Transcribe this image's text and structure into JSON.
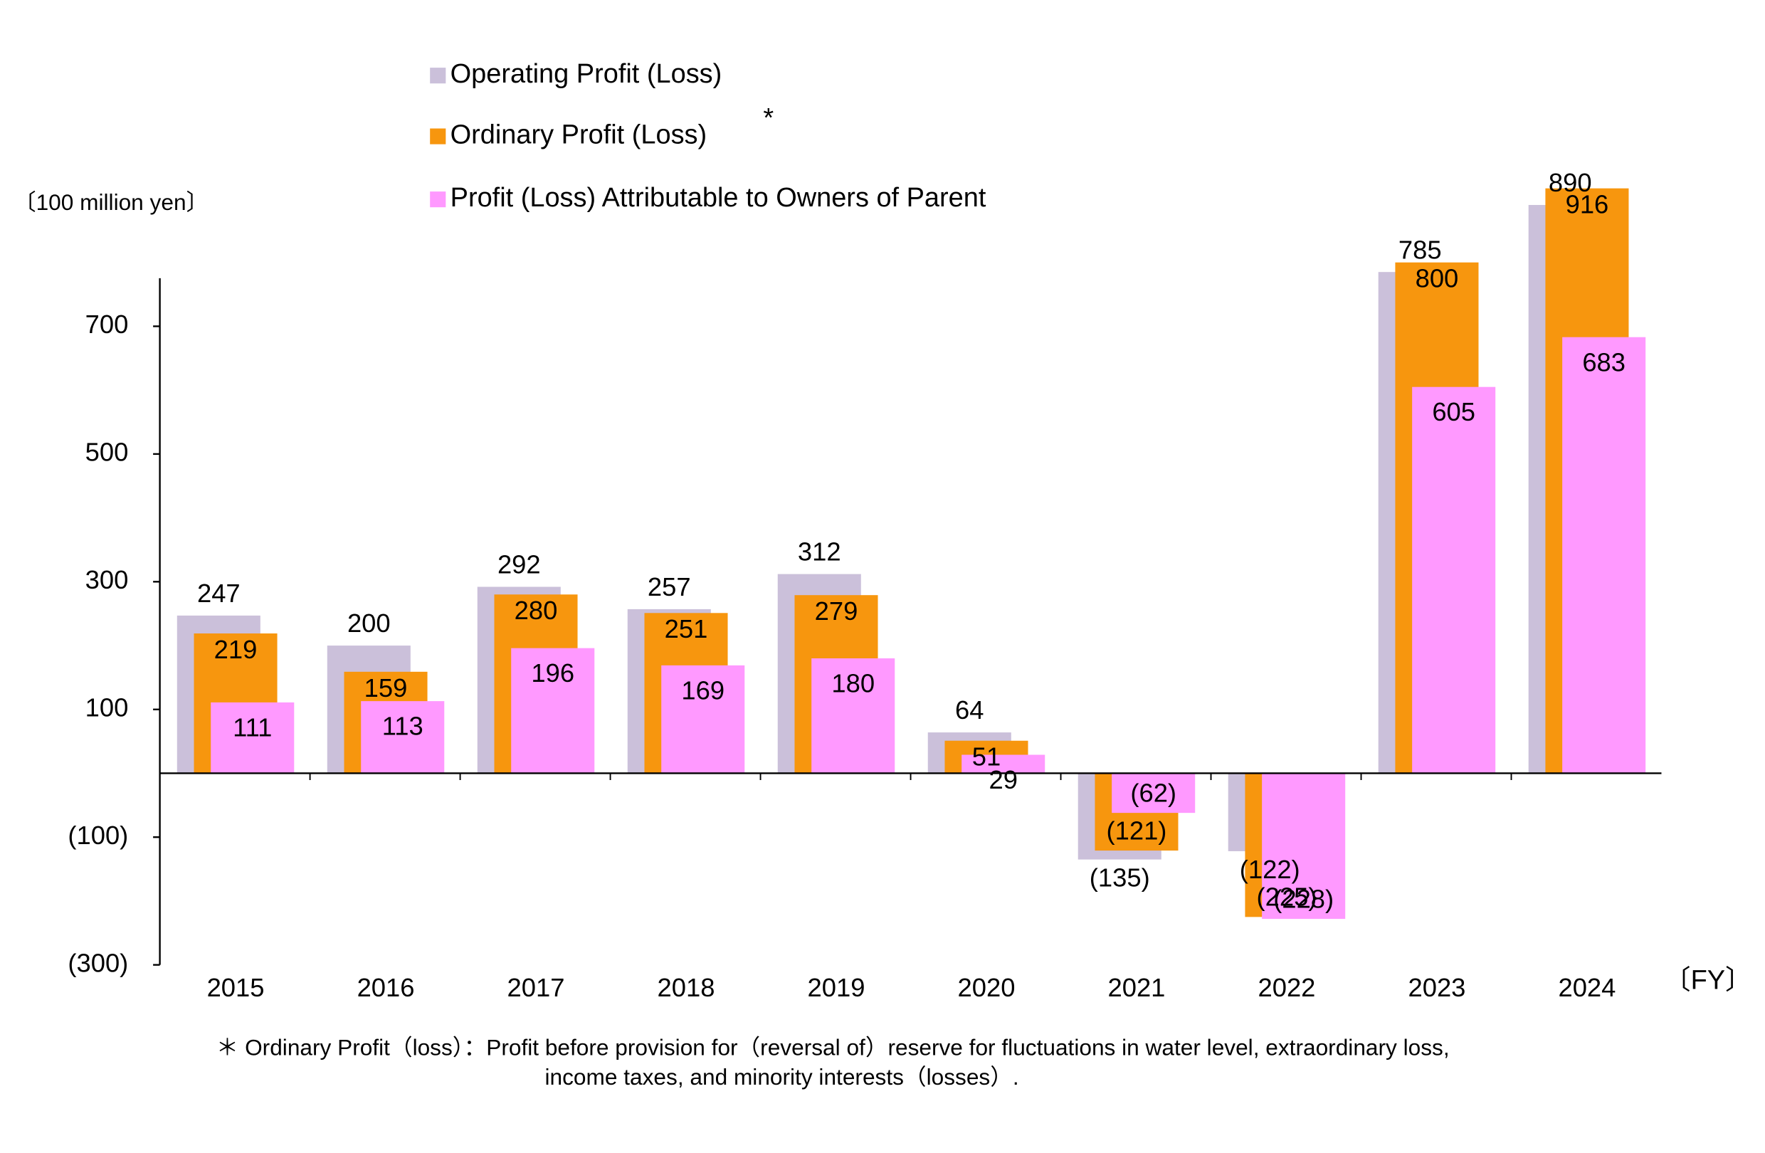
{
  "chart_data": {
    "type": "bar",
    "y_label": "〔100 million yen〕",
    "x_label": "〔FY〕",
    "legend_note": "*",
    "footnote": [
      "＊ Ordinary Profit（loss）：Profit before provision for（reversal of）reserve for fluctuations in water level, extraordinary loss,",
      "income taxes, and minority interests（losses）."
    ],
    "categories": [
      "2015",
      "2016",
      "2017",
      "2018",
      "2019",
      "2020",
      "2021",
      "2022",
      "2023",
      "2024"
    ],
    "series": [
      {
        "name": "Operating Profit (Loss)",
        "color": "#cbc0da",
        "values": [
          247,
          200,
          292,
          257,
          312,
          64,
          -135,
          -122,
          785,
          890
        ],
        "value_labels": [
          "247",
          "200",
          "292",
          "257",
          "312",
          "64",
          "(135)",
          "(122)",
          "785",
          "890"
        ]
      },
      {
        "name": "Ordinary Profit (Loss)",
        "color": "#f7960e",
        "values": [
          219,
          159,
          280,
          251,
          279,
          51,
          -121,
          -225,
          800,
          916
        ],
        "value_labels": [
          "219",
          "159",
          "280",
          "251",
          "279",
          "51",
          "(121)",
          "(225)",
          "800",
          "916"
        ]
      },
      {
        "name": "Profit (Loss) Attributable to Owners of Parent",
        "color": "#ff99ff",
        "values": [
          111,
          113,
          196,
          169,
          180,
          29,
          -62,
          -228,
          605,
          683
        ],
        "value_labels": [
          "111",
          "113",
          "196",
          "169",
          "180",
          "29",
          "(62)",
          "(228)",
          "605",
          "683"
        ]
      }
    ],
    "ylim": [
      -300,
      800
    ],
    "yticks": [
      {
        "value": -300,
        "label": "(300)"
      },
      {
        "value": -100,
        "label": "(100)"
      },
      100,
      300,
      500,
      700
    ]
  }
}
